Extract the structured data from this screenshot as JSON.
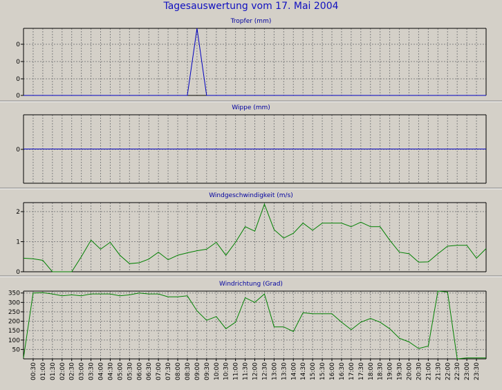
{
  "title": "Tagesauswertung vom 17. Mai 2004",
  "colors": {
    "background": "#D4D0C8",
    "title": "#1010C0",
    "grid": "#808080",
    "series_blue": "#0000C0",
    "series_green": "#008000"
  },
  "x_labels": [
    "00:30",
    "01:00",
    "01:30",
    "02:00",
    "02:30",
    "03:00",
    "03:30",
    "04:00",
    "04:30",
    "05:00",
    "05:30",
    "06:00",
    "06:30",
    "07:00",
    "07:30",
    "08:00",
    "08:30",
    "09:00",
    "09:30",
    "10:00",
    "10:30",
    "11:00",
    "11:30",
    "12:00",
    "12:30",
    "13:00",
    "13:30",
    "14:00",
    "14:30",
    "15:00",
    "15:30",
    "16:00",
    "16:30",
    "17:00",
    "17:30",
    "18:00",
    "18:30",
    "19:00",
    "19:30",
    "20:00",
    "20:30",
    "21:00",
    "21:30",
    "22:00",
    "22:30",
    "23:00",
    "23:30"
  ],
  "chart_data": [
    {
      "type": "line",
      "title": "Tropfer (mm)",
      "yticks": [
        "0",
        "0",
        "0",
        "0"
      ],
      "series": [
        {
          "color": "#0000C0",
          "values": [
            0,
            0,
            0,
            0,
            0,
            0,
            0,
            0,
            0,
            0,
            0,
            0,
            0,
            0,
            0,
            0,
            0,
            0,
            0.4,
            0,
            0,
            0,
            0,
            0,
            0,
            0,
            0,
            0,
            0,
            0,
            0,
            0,
            0,
            0,
            0,
            0,
            0,
            0,
            0,
            0,
            0,
            0,
            0,
            0,
            0,
            0,
            0,
            0,
            0
          ]
        }
      ],
      "ylim": [
        0,
        0.4
      ]
    },
    {
      "type": "line",
      "title": "Wippe (mm)",
      "yticks": [
        "0"
      ],
      "series": [
        {
          "color": "#0000C0",
          "values": [
            0,
            0,
            0,
            0,
            0,
            0,
            0,
            0,
            0,
            0,
            0,
            0,
            0,
            0,
            0,
            0,
            0,
            0,
            0,
            0,
            0,
            0,
            0,
            0,
            0,
            0,
            0,
            0,
            0,
            0,
            0,
            0,
            0,
            0,
            0,
            0,
            0,
            0,
            0,
            0,
            0,
            0,
            0,
            0,
            0,
            0,
            0,
            0,
            0
          ]
        }
      ],
      "ylim": [
        -1,
        1
      ]
    },
    {
      "type": "line",
      "title": "Windgeschwindigkeit (m/s)",
      "yticks": [
        "0",
        "1",
        "2"
      ],
      "series": [
        {
          "color": "#008000",
          "values": [
            0.45,
            0.43,
            0.38,
            0,
            0,
            0,
            0.5,
            1.05,
            0.75,
            0.98,
            0.55,
            0.27,
            0.3,
            0.42,
            0.65,
            0.4,
            0.55,
            0.63,
            0.7,
            0.75,
            0.98,
            0.55,
            0.98,
            1.5,
            1.35,
            2.25,
            1.4,
            1.12,
            1.28,
            1.62,
            1.38,
            1.62,
            1.62,
            1.62,
            1.5,
            1.65,
            1.5,
            1.5,
            1.05,
            0.65,
            0.6,
            0.32,
            0.33,
            0.6,
            0.85,
            0.88,
            0.88,
            0.45,
            0.77
          ]
        }
      ],
      "ylim": [
        0,
        2.3
      ]
    },
    {
      "type": "line",
      "title": "Windrichtung (Grad)",
      "yticks": [
        "50",
        "100",
        "150",
        "200",
        "250",
        "300",
        "350"
      ],
      "series": [
        {
          "color": "#008000",
          "values": [
            5,
            350,
            352,
            345,
            335,
            340,
            335,
            345,
            345,
            345,
            335,
            340,
            350,
            345,
            345,
            330,
            330,
            335,
            255,
            205,
            225,
            160,
            195,
            325,
            300,
            345,
            170,
            170,
            145,
            245,
            240,
            240,
            240,
            195,
            155,
            195,
            215,
            195,
            160,
            110,
            90,
            55,
            68,
            370,
            355,
            0,
            5,
            5,
            5
          ]
        }
      ],
      "ylim": [
        0,
        360
      ]
    }
  ]
}
